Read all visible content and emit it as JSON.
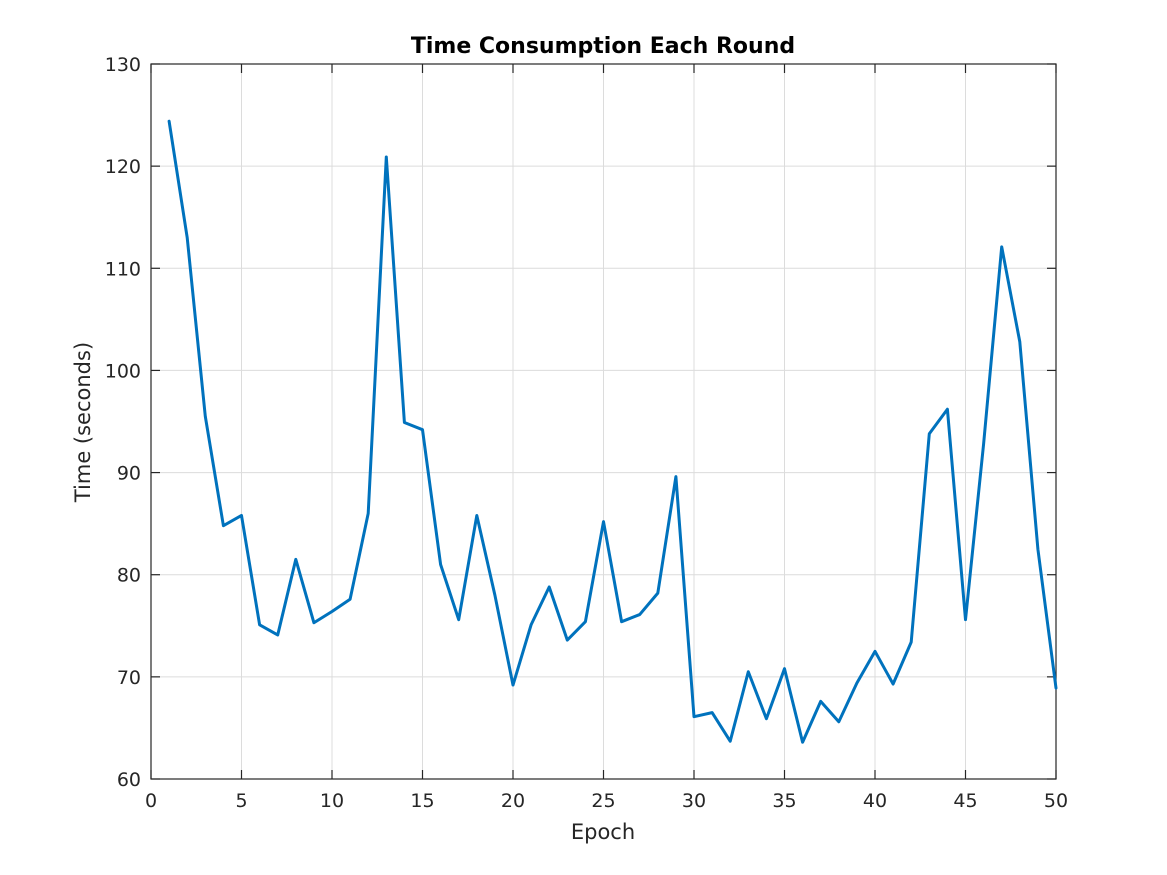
{
  "chart_data": {
    "type": "line",
    "title": "Time Consumption Each Round",
    "xlabel": "Epoch",
    "ylabel": "Time (seconds)",
    "xlim": [
      0,
      50
    ],
    "ylim": [
      60,
      130
    ],
    "xticks": [
      0,
      5,
      10,
      15,
      20,
      25,
      30,
      35,
      40,
      45,
      50
    ],
    "yticks": [
      60,
      70,
      80,
      90,
      100,
      110,
      120,
      130
    ],
    "grid": true,
    "color": "#0072BD",
    "x": [
      1,
      2,
      3,
      4,
      5,
      6,
      7,
      8,
      9,
      10,
      11,
      12,
      13,
      14,
      15,
      16,
      17,
      18,
      19,
      20,
      21,
      22,
      23,
      24,
      25,
      26,
      27,
      28,
      29,
      30,
      31,
      32,
      33,
      34,
      35,
      36,
      37,
      38,
      39,
      40,
      41,
      42,
      43,
      44,
      45,
      46,
      47,
      48,
      49,
      50
    ],
    "y": [
      124.4,
      113,
      95.5,
      84.8,
      85.8,
      75.1,
      74.1,
      81.5,
      75.3,
      76.4,
      77.6,
      86,
      120.9,
      94.9,
      94.2,
      81,
      75.6,
      85.8,
      78,
      69.2,
      75.1,
      78.8,
      73.6,
      75.4,
      85.2,
      75.4,
      76.1,
      78.2,
      89.6,
      66.1,
      66.5,
      63.7,
      70.5,
      65.9,
      70.8,
      63.6,
      67.6,
      65.6,
      69.4,
      72.5,
      69.3,
      73.4,
      93.8,
      96.2,
      75.6,
      92.8,
      112.1,
      102.8,
      82.5,
      68.9
    ]
  }
}
